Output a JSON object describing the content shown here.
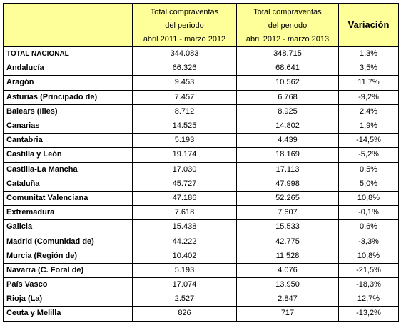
{
  "table": {
    "headers": {
      "period_2011_2012": [
        "Total compraventas",
        "del periodo",
        "abril 2011 - marzo 2012"
      ],
      "period_2012_2013": [
        "Total compraventas",
        "del periodo",
        "abril 2012 - marzo 2013"
      ],
      "variation": "Variación"
    },
    "rows": [
      {
        "region": "TOTAL NACIONAL",
        "v2012": "344.083",
        "v2013": "348.715",
        "variation": "1,3%"
      },
      {
        "region": "Andalucía",
        "v2012": "66.326",
        "v2013": "68.641",
        "variation": "3,5%"
      },
      {
        "region": "Aragón",
        "v2012": "9.453",
        "v2013": "10.562",
        "variation": "11,7%"
      },
      {
        "region": "Asturias (Principado de)",
        "v2012": "7.457",
        "v2013": "6.768",
        "variation": "-9,2%"
      },
      {
        "region": "Balears (Illes)",
        "v2012": "8.712",
        "v2013": "8.925",
        "variation": "2,4%"
      },
      {
        "region": "Canarias",
        "v2012": "14.525",
        "v2013": "14.802",
        "variation": "1,9%"
      },
      {
        "region": "Cantabria",
        "v2012": "5.193",
        "v2013": "4.439",
        "variation": "-14,5%"
      },
      {
        "region": "Castilla y León",
        "v2012": "19.174",
        "v2013": "18.169",
        "variation": "-5,2%"
      },
      {
        "region": "Castilla-La Mancha",
        "v2012": "17.030",
        "v2013": "17.113",
        "variation": "0,5%"
      },
      {
        "region": "Cataluña",
        "v2012": "45.727",
        "v2013": "47.998",
        "variation": "5,0%"
      },
      {
        "region": "Comunitat Valenciana",
        "v2012": "47.186",
        "v2013": "52.265",
        "variation": "10,8%"
      },
      {
        "region": "Extremadura",
        "v2012": "7.618",
        "v2013": "7.607",
        "variation": "-0,1%"
      },
      {
        "region": "Galicia",
        "v2012": "15.438",
        "v2013": "15.533",
        "variation": "0,6%"
      },
      {
        "region": "Madrid (Comunidad de)",
        "v2012": "44.222",
        "v2013": "42.775",
        "variation": "-3,3%"
      },
      {
        "region": "Murcia (Región de)",
        "v2012": "10.402",
        "v2013": "11.528",
        "variation": "10,8%"
      },
      {
        "region": "Navarra (C. Foral de)",
        "v2012": "5.193",
        "v2013": "4.076",
        "variation": "-21,5%"
      },
      {
        "region": "País Vasco",
        "v2012": "17.074",
        "v2013": "13.950",
        "variation": "-18,3%"
      },
      {
        "region": "Rioja (La)",
        "v2012": "2.527",
        "v2013": "2.847",
        "variation": "12,7%"
      },
      {
        "region": "Ceuta y Melilla",
        "v2012": "826",
        "v2013": "717",
        "variation": "-13,2%"
      }
    ]
  },
  "colors": {
    "header_background": "#ffff99",
    "border": "#000000"
  }
}
